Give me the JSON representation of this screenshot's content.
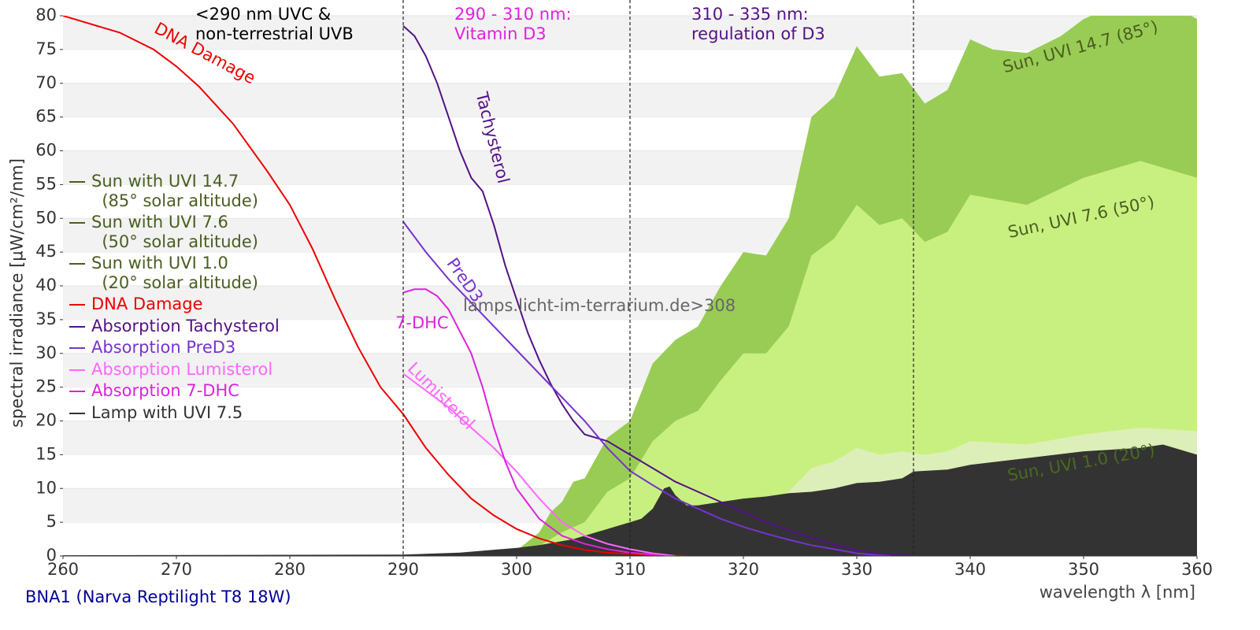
{
  "chart_data": {
    "type": "line",
    "footer": "BNA1 (Narva Reptilight T8 18W)",
    "x_label": "wavelength λ [nm]",
    "y_label": "spectral irradiance [µW/cm²/nm]",
    "xlim": [
      260,
      360
    ],
    "ylim": [
      0,
      80
    ],
    "xticks": [
      260,
      270,
      280,
      290,
      300,
      310,
      320,
      330,
      340,
      350,
      360
    ],
    "yticks": [
      0,
      5,
      10,
      15,
      20,
      25,
      30,
      35,
      40,
      45,
      50,
      55,
      60,
      65,
      70,
      75,
      80
    ],
    "grid": "banded",
    "vlines": [
      290,
      310,
      335
    ],
    "annotations": [
      {
        "text": "<290 nm UVC &\nnon-terrestrial UVB",
        "color": "#000000"
      },
      {
        "text": "290 - 310 nm:\nVitamin D3",
        "color": "#dd22dd"
      },
      {
        "text": "310 - 335 nm:\nregulation of D3",
        "color": "#551188"
      },
      {
        "text": "DNA Damage",
        "color": "#ee0000"
      },
      {
        "text": "Tachysterol",
        "color": "#551188"
      },
      {
        "text": "PreD3",
        "color": "#7733cc"
      },
      {
        "text": "7-DHC",
        "color": "#dd22dd"
      },
      {
        "text": "Lumisterol",
        "color": "#ff66ff"
      },
      {
        "text": "Sun, UVI 14.7 (85°)",
        "color": "#4a5e20"
      },
      {
        "text": "Sun, UVI 7.6 (50°)",
        "color": "#4a5e20"
      },
      {
        "text": "Sun, UVI 1.0 (20°)",
        "color": "#4a6a20"
      },
      {
        "text": "lamps.licht-im-terrarium.de>308",
        "color": "#666666"
      }
    ],
    "series": [
      {
        "name": "Sun with UVI 14.7\n  (85° solar altitude)",
        "style": "area",
        "color": "#99cc55",
        "legend_color": "#4a5e20",
        "x": [
          298,
          300,
          302,
          303,
          304,
          305,
          306,
          308,
          310,
          312,
          314,
          316,
          318,
          320,
          322,
          324,
          326,
          328,
          330,
          332,
          334,
          336,
          338,
          340,
          342,
          345,
          348,
          350,
          352,
          355,
          356,
          358,
          360
        ],
        "values": [
          0,
          0.8,
          3.5,
          6.5,
          8,
          11,
          11.5,
          17.5,
          20,
          28.5,
          32,
          34,
          40,
          45,
          44.5,
          50,
          65,
          68,
          75.5,
          71,
          71.5,
          67,
          69,
          76.5,
          75,
          74.5,
          77,
          79.5,
          81,
          84,
          83,
          81.5,
          79.5
        ]
      },
      {
        "name": "Sun with UVI 7.6\n  (50° solar altitude)",
        "style": "area",
        "color": "#c8f080",
        "legend_color": "#4a5e20",
        "x": [
          300,
          302,
          304,
          306,
          308,
          310,
          312,
          314,
          316,
          318,
          320,
          322,
          324,
          326,
          328,
          330,
          332,
          334,
          336,
          338,
          340,
          345,
          350,
          355,
          360
        ],
        "values": [
          0,
          1.5,
          3.5,
          5,
          9.5,
          11.5,
          17,
          20,
          21.5,
          26,
          30,
          30,
          34,
          44.5,
          47,
          52,
          49,
          50,
          46.5,
          48,
          53.5,
          52,
          56,
          58.5,
          56
        ]
      },
      {
        "name": "Sun with UVI 1.0\n  (20° solar altitude)",
        "style": "area",
        "color": "#dcefb8",
        "legend_color": "#4a5e20",
        "x": [
          306,
          308,
          310,
          312,
          314,
          316,
          318,
          320,
          322,
          324,
          326,
          328,
          330,
          332,
          334,
          336,
          338,
          340,
          345,
          350,
          355,
          360
        ],
        "values": [
          0,
          0.5,
          1,
          2,
          3,
          4,
          5.5,
          7,
          8,
          9.5,
          13,
          14,
          16,
          15,
          15.5,
          15,
          15.5,
          17,
          16.5,
          18,
          19,
          18.5
        ]
      },
      {
        "name": "DNA Damage",
        "style": "line",
        "color": "#ee0000",
        "x": [
          260,
          262,
          265,
          268,
          270,
          272,
          275,
          278,
          280,
          282,
          284,
          286,
          288,
          290,
          292,
          294,
          296,
          298,
          300,
          302,
          304,
          306,
          308,
          310,
          312,
          315
        ],
        "values": [
          80,
          79,
          77.5,
          75,
          72.5,
          69.5,
          64,
          57,
          52,
          45.5,
          38,
          31,
          25,
          21,
          16,
          12,
          8.5,
          6,
          4,
          2.6,
          1.6,
          0.9,
          0.5,
          0.3,
          0.15,
          0
        ]
      },
      {
        "name": "Absorption Tachysterol",
        "style": "line",
        "color": "#551188",
        "x": [
          290,
          291,
          292,
          293,
          294,
          295,
          296,
          297,
          298,
          299,
          300,
          301,
          302,
          303,
          304,
          305,
          306,
          308,
          310,
          312,
          314,
          316,
          318,
          320,
          322,
          324,
          326,
          328,
          330,
          332,
          335
        ],
        "values": [
          78.5,
          77,
          74,
          70,
          65,
          60,
          56,
          54,
          49,
          43,
          38,
          33,
          29,
          25.5,
          22.5,
          20,
          18,
          17,
          15,
          13,
          11,
          9.5,
          8,
          6.5,
          5,
          3.8,
          2.7,
          1.7,
          0.9,
          0.3,
          0
        ]
      },
      {
        "name": "Absorption PreD3",
        "style": "line",
        "color": "#7733cc",
        "x": [
          290,
          292,
          294,
          296,
          298,
          300,
          302,
          304,
          306,
          308,
          310,
          312,
          314,
          316,
          318,
          320,
          322,
          324,
          326,
          328,
          330,
          332,
          333
        ],
        "values": [
          49.5,
          45,
          41,
          37.5,
          34,
          30.5,
          27,
          23.5,
          20,
          16,
          12.6,
          10.5,
          8.5,
          7,
          5.5,
          4.3,
          3.3,
          2.4,
          1.6,
          1,
          0.4,
          0.1,
          0
        ]
      },
      {
        "name": "Absorption Lumisterol",
        "style": "line",
        "color": "#ff66ff",
        "x": [
          290,
          292,
          294,
          296,
          298,
          300,
          302,
          304,
          306,
          308,
          310,
          312,
          314
        ],
        "values": [
          27,
          24.5,
          22,
          19,
          16,
          12.5,
          8.5,
          5,
          3,
          1.8,
          1,
          0.4,
          0
        ]
      },
      {
        "name": "Absorption 7-DHC",
        "style": "line",
        "color": "#dd22dd",
        "x": [
          290,
          291,
          292,
          293,
          294,
          296,
          297,
          298,
          299,
          300,
          302,
          304,
          306,
          308,
          310,
          312,
          313
        ],
        "values": [
          39,
          39.5,
          39.5,
          38.5,
          36.5,
          30,
          25,
          19,
          14,
          10,
          5.5,
          3,
          1.8,
          1,
          0.5,
          0.2,
          0
        ]
      },
      {
        "name": "Lamp with UVI 7.5",
        "style": "area",
        "color": "#333333",
        "x": [
          260,
          290,
          295,
          300,
          302,
          305,
          308,
          310,
          311,
          312,
          313,
          313.5,
          314,
          315,
          316,
          318,
          320,
          322,
          324,
          326,
          328,
          330,
          332,
          334,
          335,
          338,
          340,
          345,
          350,
          355,
          357,
          360
        ],
        "values": [
          0.1,
          0.2,
          0.5,
          1.2,
          1.6,
          2.5,
          4,
          5,
          5.5,
          7,
          10,
          10.3,
          9,
          7.5,
          7.5,
          8,
          8.5,
          8.8,
          9.3,
          9.5,
          10,
          10.8,
          11,
          11.5,
          12.5,
          12.8,
          13.5,
          14.5,
          15.5,
          16,
          16.5,
          15
        ]
      }
    ]
  }
}
